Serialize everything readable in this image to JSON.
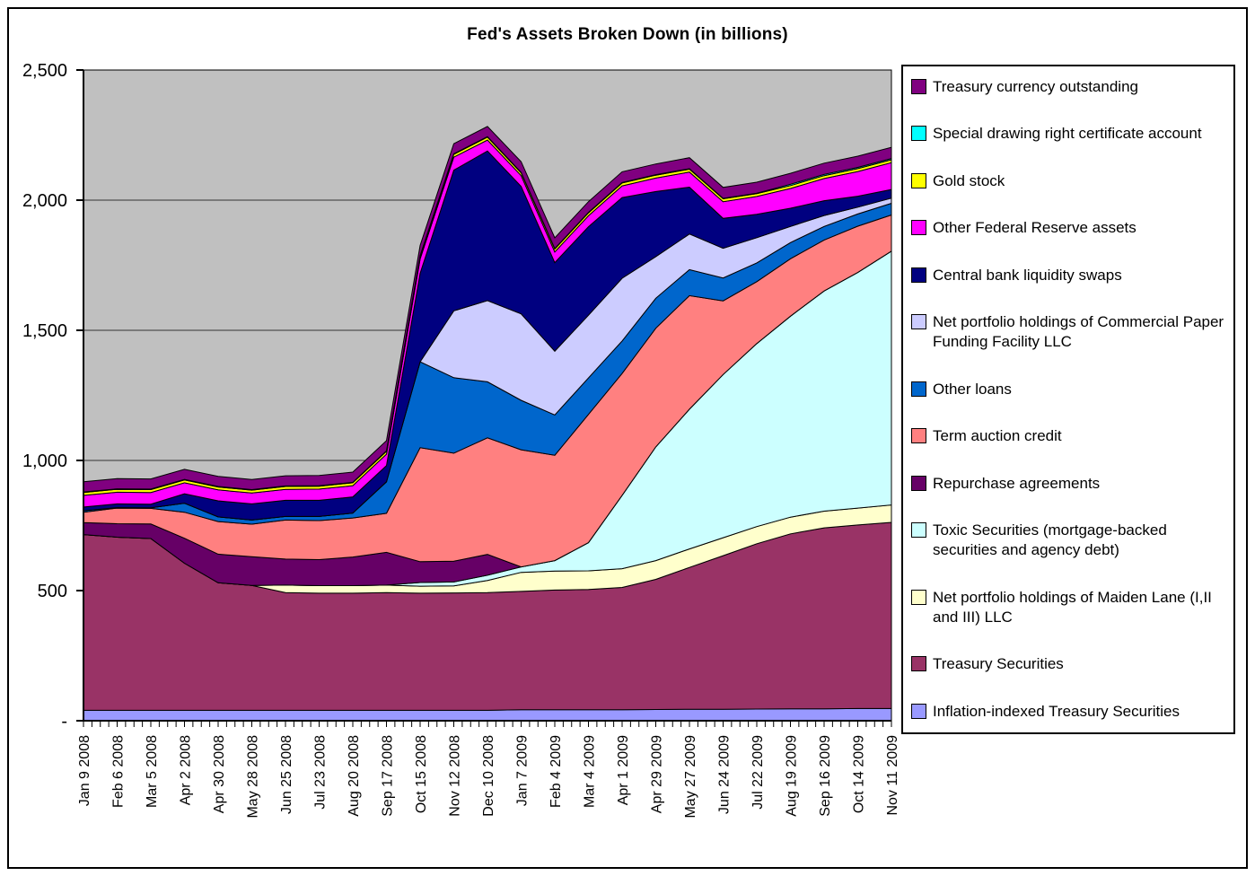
{
  "title": "Fed's Assets Broken Down (in billions)",
  "chart_data": {
    "type": "area",
    "stacked": true,
    "title": "Fed's Assets Broken Down (in billions)",
    "unit_note": "in billions",
    "plot_bg": "#C0C0C0",
    "grid": true,
    "legend_position": "right",
    "legend_order": "top-of-stack-first",
    "ylim": [
      0,
      2500
    ],
    "ytick_values": [
      0,
      500,
      1000,
      1500,
      2000,
      2500
    ],
    "ytick_labels": [
      "-",
      "500",
      "1,000",
      "1,500",
      "2,000",
      "2,500"
    ],
    "minor_ticks_per_category_interval": 4,
    "categories": [
      "Jan 9 2008",
      "Feb 6 2008",
      "Mar 5 2008",
      "Apr 2 2008",
      "Apr 30 2008",
      "May 28 2008",
      "Jun 25 2008",
      "Jul 23 2008",
      "Aug 20 2008",
      "Sep 17 2008",
      "Oct 15 2008",
      "Nov 12 2008",
      "Dec 10 2008",
      "Jan 7 2009",
      "Feb 4 2009",
      "Mar 4 2009",
      "Apr 1 2009",
      "Apr 29 2009",
      "May 27 2009",
      "Jun 24 2009",
      "Jul 22 2009",
      "Aug 19 2009",
      "Sep 16 2009",
      "Oct 14 2009",
      "Nov 11 2009"
    ],
    "series": [
      {
        "name": "Inflation-indexed Treasury Securities",
        "color": "#9999FF",
        "values": [
          40,
          40,
          40,
          40,
          40,
          40,
          40,
          40,
          40,
          40,
          40,
          40,
          40,
          42,
          42,
          42,
          42,
          43,
          44,
          44,
          45,
          46,
          46,
          47,
          47
        ]
      },
      {
        "name": "Treasury Securities",
        "color": "#993366",
        "values": [
          675,
          665,
          660,
          565,
          490,
          480,
          452,
          450,
          450,
          452,
          450,
          451,
          452,
          455,
          460,
          462,
          470,
          500,
          545,
          590,
          635,
          672,
          695,
          705,
          715
        ]
      },
      {
        "name": "Net portfolio holdings of Maiden Lane (I,II and III) LLC",
        "color": "#FFFFCC",
        "values": [
          0,
          0,
          0,
          0,
          0,
          0,
          29,
          29,
          29,
          29,
          27,
          27,
          47,
          73,
          73,
          72,
          72,
          72,
          71,
          69,
          66,
          64,
          64,
          65,
          67
        ]
      },
      {
        "name": "Toxic Securities (mortgage-backed securities and agency debt)",
        "color": "#CCFFFF",
        "values": [
          0,
          0,
          0,
          0,
          0,
          0,
          0,
          0,
          0,
          0,
          14,
          15,
          20,
          21,
          40,
          108,
          282,
          437,
          537,
          627,
          703,
          772,
          846,
          905,
          975
        ]
      },
      {
        "name": "Repurchase agreements",
        "color": "#660066",
        "values": [
          46,
          52,
          56,
          96,
          110,
          110,
          100,
          100,
          110,
          126,
          80,
          80,
          80,
          0,
          0,
          0,
          0,
          0,
          0,
          0,
          0,
          0,
          0,
          0,
          0
        ]
      },
      {
        "name": "Term auction credit",
        "color": "#FF8080",
        "values": [
          40,
          60,
          60,
          100,
          125,
          125,
          150,
          150,
          150,
          150,
          438,
          415,
          448,
          450,
          405,
          493,
          468,
          456,
          436,
          283,
          238,
          221,
          196,
          178,
          139
        ]
      },
      {
        "name": "Other loans",
        "color": "#0066CC",
        "values": [
          6,
          2,
          2,
          35,
          18,
          16,
          14,
          16,
          19,
          121,
          330,
          290,
          215,
          190,
          155,
          140,
          125,
          115,
          100,
          88,
          72,
          62,
          52,
          47,
          45
        ]
      },
      {
        "name": "Net portfolio holdings of Commercial Paper Funding Facility LLC",
        "color": "#CCCCFF",
        "values": [
          0,
          0,
          0,
          0,
          0,
          0,
          0,
          0,
          0,
          0,
          0,
          257,
          312,
          332,
          245,
          241,
          241,
          160,
          137,
          114,
          97,
          62,
          42,
          26,
          20
        ]
      },
      {
        "name": "Central bank liquidity swaps",
        "color": "#000080",
        "values": [
          14,
          14,
          14,
          36,
          62,
          62,
          62,
          62,
          62,
          62,
          340,
          540,
          575,
          490,
          340,
          340,
          310,
          250,
          180,
          115,
          90,
          70,
          57,
          42,
          33
        ]
      },
      {
        "name": "Other Federal Reserve assets",
        "color": "#FF00FF",
        "values": [
          45,
          45,
          45,
          42,
          42,
          42,
          42,
          43,
          43,
          44,
          55,
          50,
          42,
          41,
          41,
          42,
          45,
          52,
          58,
          64,
          68,
          76,
          85,
          95,
          103
        ]
      },
      {
        "name": "Gold stock",
        "color": "#FFFF00",
        "values": [
          11,
          11,
          11,
          11,
          11,
          11,
          11,
          11,
          11,
          11,
          11,
          11,
          11,
          11,
          11,
          11,
          11,
          11,
          11,
          11,
          11,
          11,
          11,
          11,
          11
        ]
      },
      {
        "name": "Special drawing right certificate account",
        "color": "#00FFFF",
        "values": [
          2,
          2,
          2,
          2,
          2,
          2,
          2,
          2,
          2,
          2,
          2,
          2,
          2,
          2,
          2,
          2,
          2,
          2,
          2,
          2,
          2,
          5,
          5,
          5,
          5
        ]
      },
      {
        "name": "Treasury currency outstanding",
        "color": "#800080",
        "values": [
          39,
          39,
          39,
          39,
          39,
          39,
          39,
          39,
          39,
          39,
          39,
          39,
          39,
          41,
          41,
          41,
          41,
          41,
          42,
          42,
          42,
          42,
          43,
          43,
          43
        ]
      }
    ]
  }
}
